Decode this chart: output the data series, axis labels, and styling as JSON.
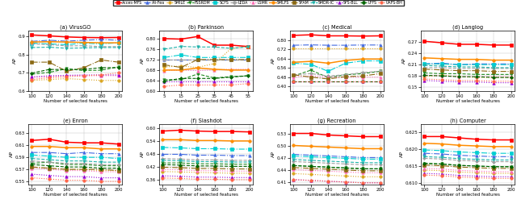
{
  "legend_labels": [
    "Acces-MFS",
    "Ali-Fea",
    "SMILE",
    "FSSRDM",
    "SCFS",
    "LEDA",
    "LSMR",
    "SMLFS",
    "SFAM",
    "SMDR-IC",
    "SFS-BLL",
    "LFFS",
    "UAFS-BH"
  ],
  "line_styles": [
    {
      "color": "#FF0000",
      "linestyle": "-",
      "marker": "s",
      "lw": 1.1,
      "ms": 2.5,
      "mew": 0.5
    },
    {
      "color": "#4169E1",
      "linestyle": "-.",
      "marker": "^",
      "lw": 0.8,
      "ms": 2.5,
      "mew": 0.5
    },
    {
      "color": "#DAA520",
      "linestyle": ":",
      "marker": "o",
      "lw": 0.8,
      "ms": 2.5,
      "mew": 0.5
    },
    {
      "color": "#228B22",
      "linestyle": "--",
      "marker": "v",
      "lw": 0.8,
      "ms": 2.5,
      "mew": 0.5
    },
    {
      "color": "#00CED1",
      "linestyle": "-.",
      "marker": "s",
      "lw": 0.8,
      "ms": 2.5,
      "mew": 0.5
    },
    {
      "color": "#A0A0A0",
      "linestyle": "--",
      "marker": "D",
      "lw": 0.8,
      "ms": 2.0,
      "mew": 0.5
    },
    {
      "color": "#FF69B4",
      "linestyle": ":",
      "marker": "^",
      "lw": 0.8,
      "ms": 2.5,
      "mew": 0.5
    },
    {
      "color": "#FF8C00",
      "linestyle": "-",
      "marker": "o",
      "lw": 1.1,
      "ms": 2.5,
      "mew": 0.5
    },
    {
      "color": "#8B6914",
      "linestyle": "-.",
      "marker": "s",
      "lw": 0.8,
      "ms": 2.5,
      "mew": 0.5
    },
    {
      "color": "#20B2AA",
      "linestyle": "--",
      "marker": "v",
      "lw": 0.8,
      "ms": 2.5,
      "mew": 0.5
    },
    {
      "color": "#9400D3",
      "linestyle": ":",
      "marker": "^",
      "lw": 0.8,
      "ms": 2.5,
      "mew": 0.5
    },
    {
      "color": "#006400",
      "linestyle": "--",
      "marker": "D",
      "lw": 0.8,
      "ms": 2.0,
      "mew": 0.5
    },
    {
      "color": "#FF6347",
      "linestyle": ":",
      "marker": "o",
      "lw": 0.8,
      "ms": 2.5,
      "mew": 0.5
    }
  ],
  "subplots": [
    {
      "title": "(a) VirusGO",
      "xlabel": "Number of selected features",
      "ylabel": "AP",
      "xticks": [
        100,
        120,
        140,
        160,
        180,
        200
      ],
      "xlim": [
        96,
        204
      ],
      "ylim": [
        0.6,
        0.93
      ],
      "yticks": [
        0.6,
        0.7,
        0.8,
        0.9
      ],
      "data": [
        [
          0.907,
          0.902,
          0.896,
          0.893,
          0.892,
          0.893
        ],
        [
          0.872,
          0.878,
          0.873,
          0.878,
          0.882,
          0.878
        ],
        [
          0.658,
          0.663,
          0.668,
          0.663,
          0.658,
          0.658
        ],
        [
          0.692,
          0.702,
          0.722,
          0.712,
          0.714,
          0.732
        ],
        [
          0.862,
          0.858,
          0.854,
          0.862,
          0.858,
          0.864
        ],
        [
          0.858,
          0.854,
          0.847,
          0.848,
          0.843,
          0.843
        ],
        [
          0.674,
          0.679,
          0.684,
          0.684,
          0.684,
          0.684
        ],
        [
          0.868,
          0.87,
          0.868,
          0.866,
          0.864,
          0.864
        ],
        [
          0.758,
          0.758,
          0.708,
          0.728,
          0.77,
          0.758
        ],
        [
          0.838,
          0.84,
          0.834,
          0.836,
          0.838,
          0.838
        ],
        [
          0.678,
          0.683,
          0.686,
          0.688,
          0.688,
          0.688
        ],
        [
          0.698,
          0.718,
          0.718,
          0.718,
          0.728,
          0.728
        ],
        [
          0.663,
          0.673,
          0.678,
          0.683,
          0.688,
          0.7
        ]
      ]
    },
    {
      "title": "(b) Parkinson",
      "xlabel": "Number of selected features",
      "ylabel": "AP",
      "xticks": [
        5,
        15,
        25,
        35,
        45,
        55
      ],
      "xlim": [
        2,
        58
      ],
      "ylim": [
        0.6,
        0.83
      ],
      "yticks": [
        0.6,
        0.64,
        0.68,
        0.72,
        0.76,
        0.8
      ],
      "data": [
        [
          0.8,
          0.798,
          0.808,
          0.775,
          0.775,
          0.77
        ],
        [
          0.72,
          0.72,
          0.72,
          0.72,
          0.72,
          0.72
        ],
        [
          0.692,
          0.695,
          0.69,
          0.705,
          0.762,
          0.77
        ],
        [
          0.643,
          0.643,
          0.665,
          0.65,
          0.655,
          0.658
        ],
        [
          0.728,
          0.738,
          0.728,
          0.728,
          0.728,
          0.728
        ],
        [
          0.72,
          0.72,
          0.72,
          0.72,
          0.72,
          0.72
        ],
        [
          0.678,
          0.68,
          0.678,
          0.68,
          0.683,
          0.683
        ],
        [
          0.68,
          0.68,
          0.688,
          0.683,
          0.68,
          0.68
        ],
        [
          0.7,
          0.69,
          0.72,
          0.72,
          0.72,
          0.72
        ],
        [
          0.76,
          0.77,
          0.768,
          0.768,
          0.763,
          0.768
        ],
        [
          0.638,
          0.638,
          0.638,
          0.638,
          0.638,
          0.638
        ],
        [
          0.638,
          0.648,
          0.648,
          0.648,
          0.653,
          0.658
        ],
        [
          0.618,
          0.623,
          0.623,
          0.623,
          0.623,
          0.628
        ]
      ]
    },
    {
      "title": "(c) Medical",
      "xlabel": "Number of selected features",
      "ylabel": "AP",
      "xticks": [
        100,
        120,
        140,
        160,
        180,
        200
      ],
      "xlim": [
        96,
        204
      ],
      "ylim": [
        0.36,
        0.88
      ],
      "yticks": [
        0.4,
        0.48,
        0.56,
        0.64,
        0.72,
        0.8
      ],
      "data": [
        [
          0.84,
          0.845,
          0.836,
          0.836,
          0.834,
          0.836
        ],
        [
          0.755,
          0.758,
          0.755,
          0.755,
          0.757,
          0.757
        ],
        [
          0.73,
          0.73,
          0.73,
          0.73,
          0.73,
          0.73
        ],
        [
          0.49,
          0.54,
          0.476,
          0.5,
          0.51,
          0.53
        ],
        [
          0.6,
          0.59,
          0.53,
          0.6,
          0.62,
          0.62
        ],
        [
          0.5,
          0.51,
          0.49,
          0.5,
          0.52,
          0.53
        ],
        [
          0.48,
          0.49,
          0.48,
          0.48,
          0.48,
          0.48
        ],
        [
          0.608,
          0.616,
          0.6,
          0.624,
          0.636,
          0.636
        ],
        [
          0.5,
          0.48,
          0.464,
          0.484,
          0.49,
          0.51
        ],
        [
          0.44,
          0.44,
          0.44,
          0.44,
          0.44,
          0.44
        ],
        [
          0.44,
          0.44,
          0.44,
          0.44,
          0.44,
          0.44
        ],
        [
          0.44,
          0.44,
          0.44,
          0.44,
          0.44,
          0.44
        ],
        [
          0.44,
          0.44,
          0.44,
          0.44,
          0.44,
          0.44
        ]
      ]
    },
    {
      "title": "(d) Langlog",
      "xlabel": "Number of selected features",
      "ylabel": "AP",
      "xticks": [
        100,
        120,
        140,
        160,
        180,
        200
      ],
      "xlim": [
        96,
        204
      ],
      "ylim": [
        0.14,
        0.3
      ],
      "yticks": [
        0.15,
        0.18,
        0.21,
        0.24,
        0.27
      ],
      "data": [
        [
          0.272,
          0.268,
          0.264,
          0.264,
          0.262,
          0.262
        ],
        [
          0.212,
          0.214,
          0.21,
          0.212,
          0.212,
          0.212
        ],
        [
          0.178,
          0.182,
          0.178,
          0.176,
          0.176,
          0.176
        ],
        [
          0.188,
          0.186,
          0.186,
          0.184,
          0.184,
          0.184
        ],
        [
          0.212,
          0.212,
          0.21,
          0.21,
          0.21,
          0.21
        ],
        [
          0.202,
          0.202,
          0.2,
          0.2,
          0.2,
          0.2
        ],
        [
          0.182,
          0.18,
          0.178,
          0.178,
          0.178,
          0.178
        ],
        [
          0.228,
          0.226,
          0.224,
          0.224,
          0.222,
          0.222
        ],
        [
          0.198,
          0.196,
          0.194,
          0.194,
          0.192,
          0.192
        ],
        [
          0.208,
          0.206,
          0.204,
          0.204,
          0.202,
          0.202
        ],
        [
          0.168,
          0.166,
          0.164,
          0.164,
          0.162,
          0.162
        ],
        [
          0.182,
          0.18,
          0.178,
          0.178,
          0.176,
          0.176
        ],
        [
          0.172,
          0.17,
          0.168,
          0.168,
          0.166,
          0.166
        ]
      ]
    },
    {
      "title": "(e) Enron",
      "xlabel": "Number of selected features",
      "ylabel": "AP",
      "xticks": [
        100,
        120,
        140,
        160,
        180,
        200
      ],
      "xlim": [
        96,
        204
      ],
      "ylim": [
        0.545,
        0.645
      ],
      "yticks": [
        0.55,
        0.57,
        0.59,
        0.61,
        0.63
      ],
      "data": [
        [
          0.618,
          0.62,
          0.615,
          0.614,
          0.614,
          0.612
        ],
        [
          0.598,
          0.598,
          0.596,
          0.598,
          0.596,
          0.596
        ],
        [
          0.574,
          0.572,
          0.57,
          0.57,
          0.568,
          0.568
        ],
        [
          0.58,
          0.582,
          0.578,
          0.578,
          0.576,
          0.576
        ],
        [
          0.594,
          0.592,
          0.59,
          0.59,
          0.59,
          0.588
        ],
        [
          0.584,
          0.582,
          0.58,
          0.58,
          0.578,
          0.578
        ],
        [
          0.572,
          0.57,
          0.568,
          0.568,
          0.566,
          0.566
        ],
        [
          0.608,
          0.608,
          0.606,
          0.606,
          0.604,
          0.604
        ],
        [
          0.574,
          0.572,
          0.57,
          0.57,
          0.57,
          0.568
        ],
        [
          0.588,
          0.586,
          0.584,
          0.584,
          0.582,
          0.582
        ],
        [
          0.562,
          0.56,
          0.558,
          0.558,
          0.556,
          0.556
        ],
        [
          0.578,
          0.576,
          0.574,
          0.574,
          0.572,
          0.572
        ],
        [
          0.556,
          0.554,
          0.552,
          0.552,
          0.55,
          0.55
        ]
      ]
    },
    {
      "title": "(f) Slashdot",
      "xlabel": "Number of selected features",
      "ylabel": "AP",
      "xticks": [
        100,
        120,
        140,
        160,
        180,
        200
      ],
      "xlim": [
        96,
        204
      ],
      "ylim": [
        0.34,
        0.62
      ],
      "yticks": [
        0.36,
        0.42,
        0.48,
        0.54,
        0.6
      ],
      "data": [
        [
          0.588,
          0.592,
          0.588,
          0.586,
          0.586,
          0.584
        ],
        [
          0.48,
          0.48,
          0.476,
          0.476,
          0.474,
          0.474
        ],
        [
          0.4,
          0.398,
          0.396,
          0.394,
          0.392,
          0.392
        ],
        [
          0.44,
          0.44,
          0.436,
          0.436,
          0.434,
          0.434
        ],
        [
          0.512,
          0.51,
          0.506,
          0.506,
          0.504,
          0.504
        ],
        [
          0.46,
          0.458,
          0.454,
          0.454,
          0.452,
          0.452
        ],
        [
          0.41,
          0.408,
          0.404,
          0.404,
          0.402,
          0.402
        ],
        [
          0.548,
          0.548,
          0.544,
          0.544,
          0.542,
          0.542
        ],
        [
          0.42,
          0.418,
          0.414,
          0.414,
          0.412,
          0.412
        ],
        [
          0.452,
          0.45,
          0.446,
          0.446,
          0.444,
          0.444
        ],
        [
          0.38,
          0.378,
          0.374,
          0.374,
          0.372,
          0.372
        ],
        [
          0.432,
          0.43,
          0.426,
          0.426,
          0.424,
          0.424
        ],
        [
          0.37,
          0.368,
          0.364,
          0.364,
          0.362,
          0.362
        ]
      ]
    },
    {
      "title": "(g) Recreation",
      "xlabel": "Number of selected features",
      "ylabel": "AP",
      "xticks": [
        100,
        120,
        140,
        160,
        180,
        200
      ],
      "xlim": [
        96,
        204
      ],
      "ylim": [
        0.405,
        0.555
      ],
      "yticks": [
        0.41,
        0.44,
        0.47,
        0.5,
        0.53
      ],
      "data": [
        [
          0.532,
          0.532,
          0.528,
          0.526,
          0.524,
          0.524
        ],
        [
          0.48,
          0.478,
          0.476,
          0.474,
          0.472,
          0.472
        ],
        [
          0.432,
          0.43,
          0.428,
          0.426,
          0.424,
          0.424
        ],
        [
          0.452,
          0.45,
          0.448,
          0.446,
          0.444,
          0.444
        ],
        [
          0.476,
          0.474,
          0.472,
          0.47,
          0.468,
          0.468
        ],
        [
          0.462,
          0.46,
          0.458,
          0.456,
          0.454,
          0.454
        ],
        [
          0.442,
          0.44,
          0.438,
          0.436,
          0.434,
          0.434
        ],
        [
          0.502,
          0.5,
          0.498,
          0.496,
          0.494,
          0.494
        ],
        [
          0.447,
          0.445,
          0.443,
          0.441,
          0.439,
          0.439
        ],
        [
          0.467,
          0.465,
          0.463,
          0.461,
          0.459,
          0.459
        ],
        [
          0.417,
          0.415,
          0.413,
          0.411,
          0.409,
          0.409
        ],
        [
          0.452,
          0.45,
          0.448,
          0.446,
          0.444,
          0.444
        ],
        [
          0.417,
          0.415,
          0.413,
          0.411,
          0.409,
          0.409
        ]
      ]
    },
    {
      "title": "(h) Computer",
      "xlabel": "Number of selected features",
      "ylabel": "AP",
      "xticks": [
        100,
        120,
        140,
        160,
        180,
        200
      ],
      "xlim": [
        96,
        204
      ],
      "ylim": [
        0.6095,
        0.6275
      ],
      "yticks": [
        0.61,
        0.615,
        0.62,
        0.625
      ],
      "data": [
        [
          0.6238,
          0.6238,
          0.6234,
          0.623,
          0.6228,
          0.6228
        ],
        [
          0.6188,
          0.6186,
          0.6182,
          0.618,
          0.6178,
          0.6178
        ],
        [
          0.6138,
          0.6136,
          0.6132,
          0.613,
          0.6128,
          0.6128
        ],
        [
          0.6158,
          0.6156,
          0.6152,
          0.615,
          0.6148,
          0.6148
        ],
        [
          0.6198,
          0.6196,
          0.6192,
          0.619,
          0.6188,
          0.6188
        ],
        [
          0.6173,
          0.6171,
          0.6167,
          0.6165,
          0.6163,
          0.6163
        ],
        [
          0.6143,
          0.6141,
          0.6137,
          0.6135,
          0.6133,
          0.6133
        ],
        [
          0.6218,
          0.6216,
          0.6212,
          0.621,
          0.6208,
          0.6208
        ],
        [
          0.6153,
          0.6151,
          0.6147,
          0.6145,
          0.6143,
          0.6143
        ],
        [
          0.6178,
          0.6176,
          0.6172,
          0.617,
          0.6168,
          0.6168
        ],
        [
          0.6128,
          0.6126,
          0.6122,
          0.612,
          0.6118,
          0.6118
        ],
        [
          0.6158,
          0.6156,
          0.6152,
          0.615,
          0.6148,
          0.6148
        ],
        [
          0.6123,
          0.6121,
          0.6117,
          0.6115,
          0.6113,
          0.6113
        ]
      ]
    }
  ]
}
